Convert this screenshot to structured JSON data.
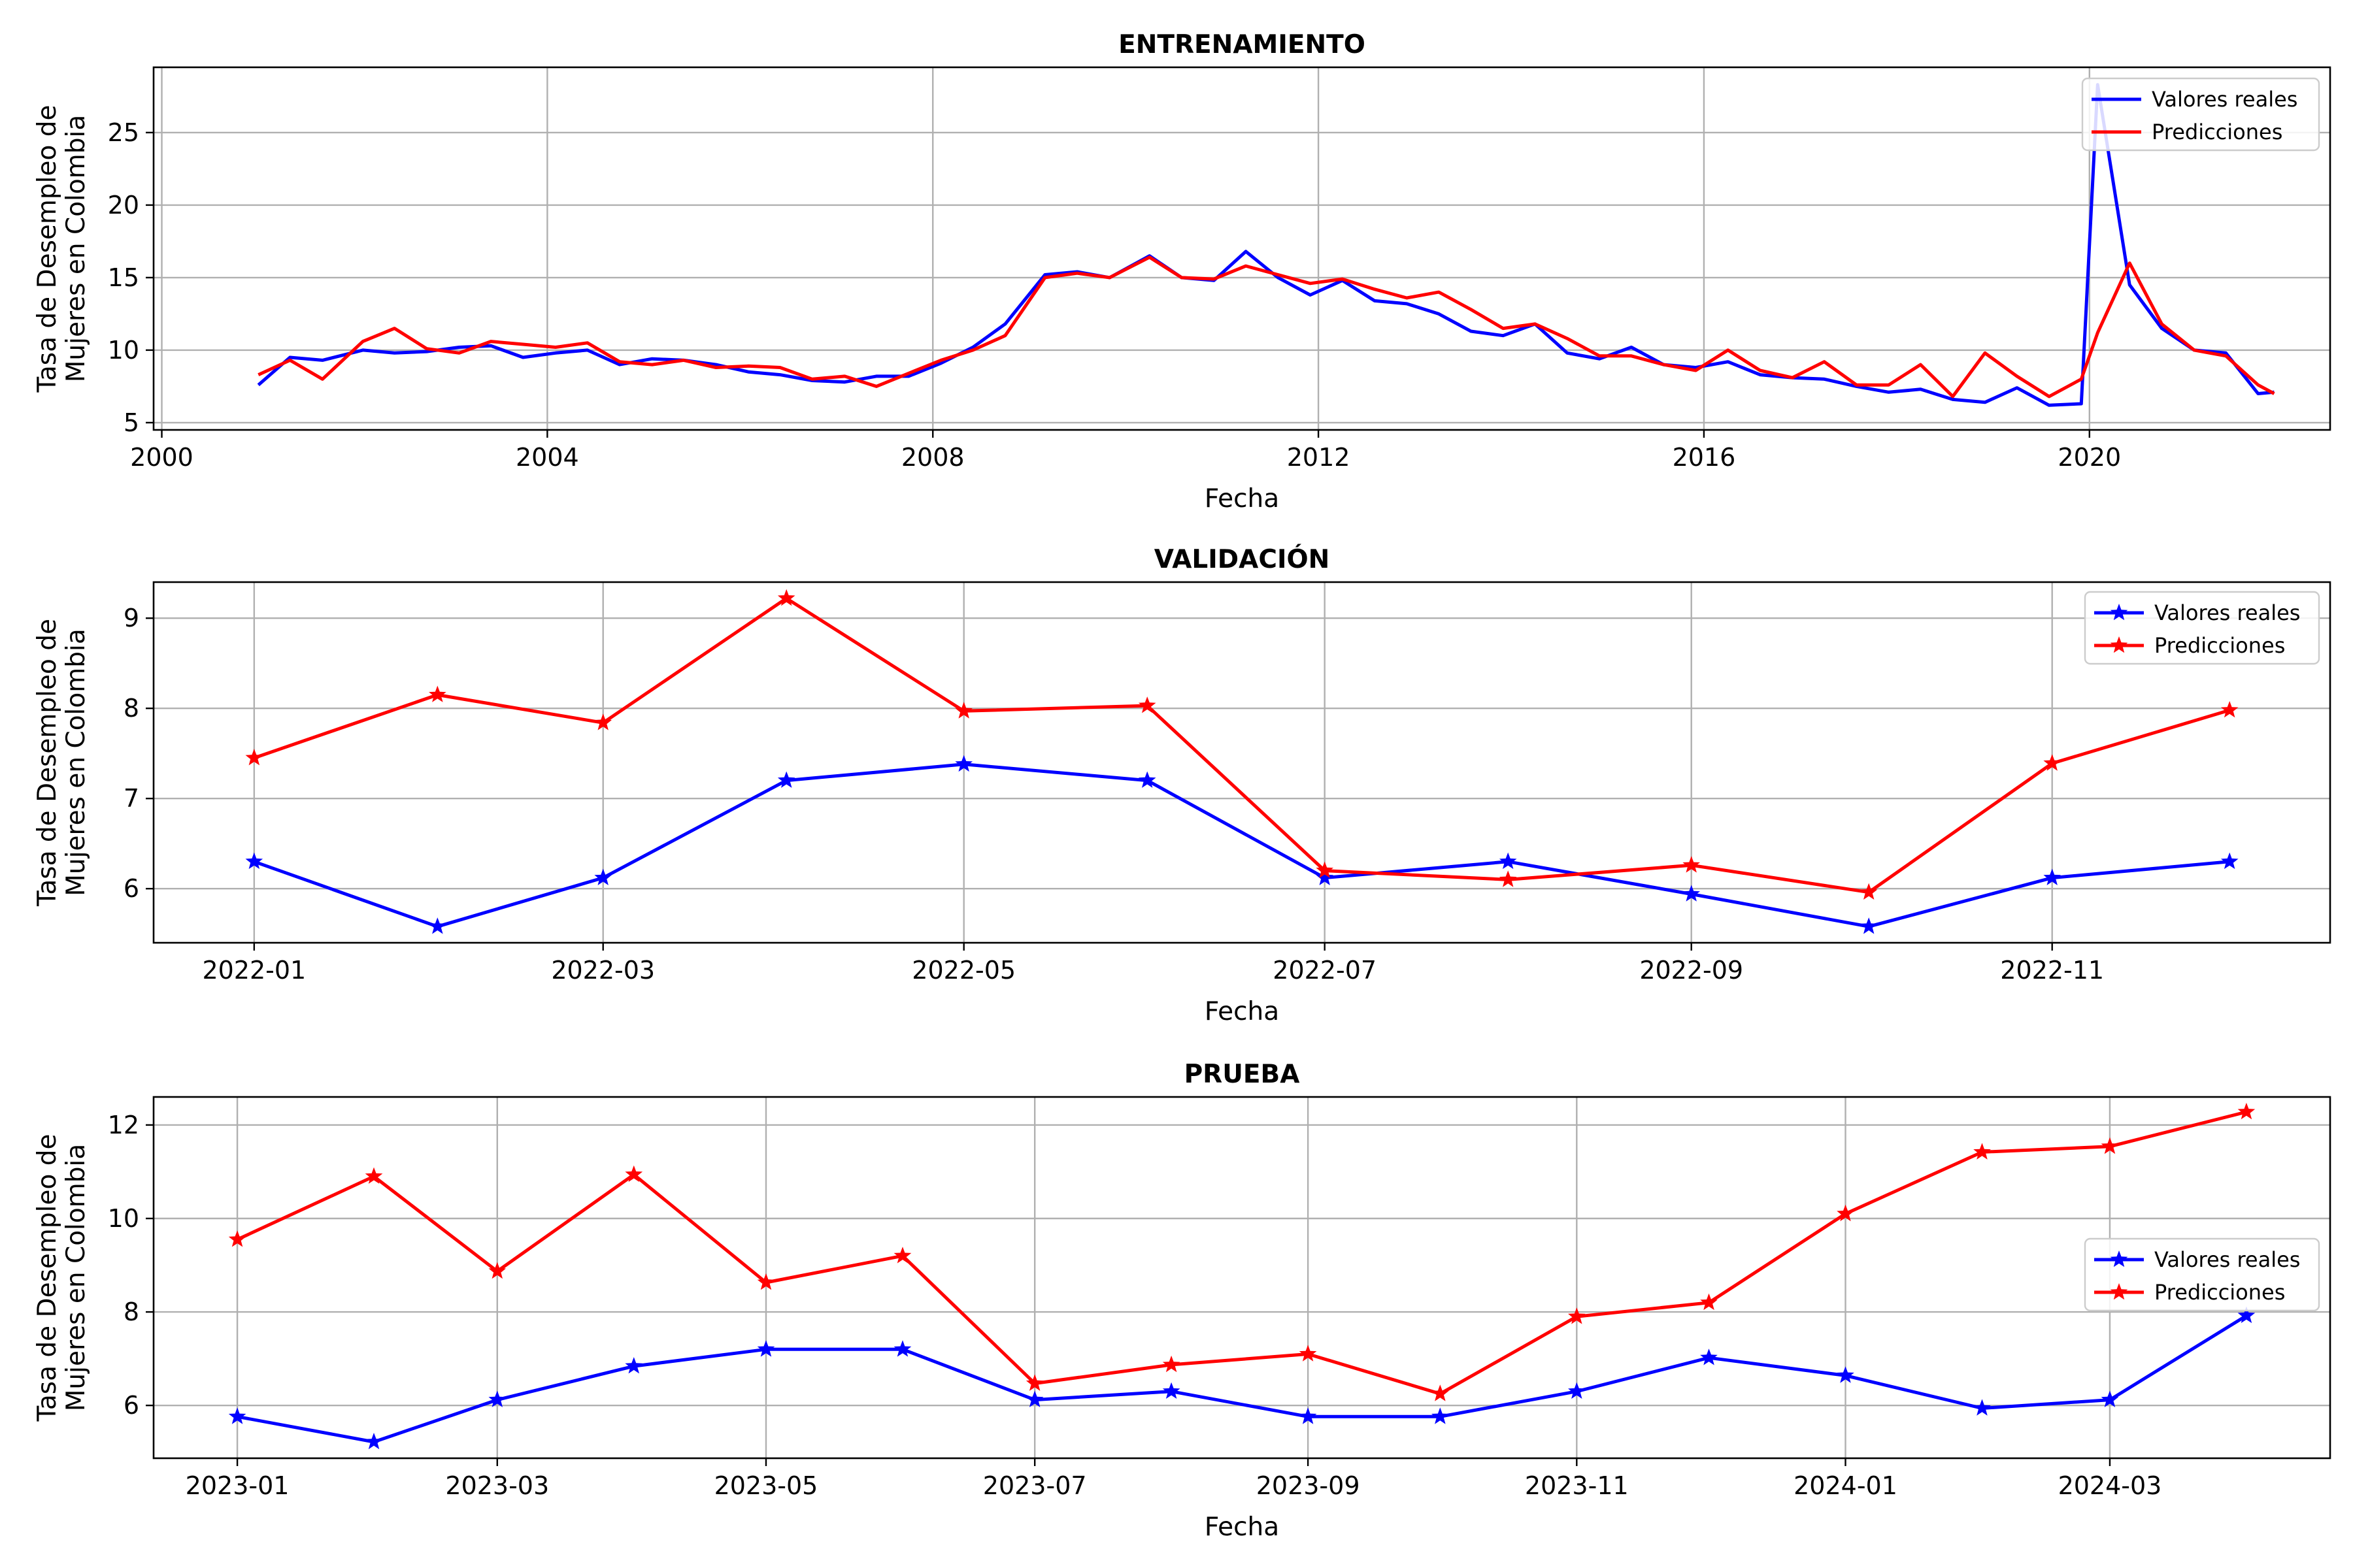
{
  "chart_data": [
    {
      "type": "line",
      "title": "ENTRENAMIENTO",
      "xlabel": "Fecha",
      "ylabel": [
        "Tasa de Desempleo de",
        "Mujeres en Colombia"
      ],
      "x_type": "date",
      "xlim": [
        "1999-12-01",
        "2022-07-01"
      ],
      "ylim": [
        4.5,
        29.5
      ],
      "x_ticks": [
        {
          "value": "2000-01-01",
          "label": "2000"
        },
        {
          "value": "2004-01-01",
          "label": "2004"
        },
        {
          "value": "2008-01-01",
          "label": "2008"
        },
        {
          "value": "2012-01-01",
          "label": "2012"
        },
        {
          "value": "2016-01-01",
          "label": "2016"
        },
        {
          "value": "2020-01-01",
          "label": "2020"
        }
      ],
      "y_ticks": [
        5,
        10,
        15,
        20,
        25
      ],
      "grid": true,
      "legend": "top-right",
      "series": [
        {
          "name": "Valores reales",
          "color": "#0000ff",
          "marker": "none",
          "points": [
            [
              "2001-01-01",
              7.6
            ],
            [
              "2001-05-01",
              9.5
            ],
            [
              "2001-09-01",
              9.3
            ],
            [
              "2002-02-01",
              10.0
            ],
            [
              "2002-06-01",
              9.8
            ],
            [
              "2002-10-01",
              9.9
            ],
            [
              "2003-02-01",
              10.2
            ],
            [
              "2003-06-01",
              10.3
            ],
            [
              "2003-10-01",
              9.5
            ],
            [
              "2004-02-01",
              9.8
            ],
            [
              "2004-06-01",
              10.0
            ],
            [
              "2004-10-01",
              9.0
            ],
            [
              "2005-02-01",
              9.4
            ],
            [
              "2005-06-01",
              9.3
            ],
            [
              "2005-10-01",
              9.0
            ],
            [
              "2006-02-01",
              8.5
            ],
            [
              "2006-06-01",
              8.3
            ],
            [
              "2006-10-01",
              7.9
            ],
            [
              "2007-02-01",
              7.8
            ],
            [
              "2007-06-01",
              8.2
            ],
            [
              "2007-10-01",
              8.2
            ],
            [
              "2008-02-01",
              9.1
            ],
            [
              "2008-06-01",
              10.2
            ],
            [
              "2008-10-01",
              11.8
            ],
            [
              "2009-03-01",
              15.2
            ],
            [
              "2009-07-01",
              15.4
            ],
            [
              "2009-11-01",
              15.0
            ],
            [
              "2010-04-01",
              16.5
            ],
            [
              "2010-08-01",
              15.0
            ],
            [
              "2010-12-01",
              14.8
            ],
            [
              "2011-04-01",
              16.8
            ],
            [
              "2011-08-01",
              15.0
            ],
            [
              "2011-12-01",
              13.8
            ],
            [
              "2012-04-01",
              14.8
            ],
            [
              "2012-08-01",
              13.4
            ],
            [
              "2012-12-01",
              13.2
            ],
            [
              "2013-04-01",
              12.5
            ],
            [
              "2013-08-01",
              11.3
            ],
            [
              "2013-12-01",
              11.0
            ],
            [
              "2014-04-01",
              11.8
            ],
            [
              "2014-08-01",
              9.8
            ],
            [
              "2014-12-01",
              9.4
            ],
            [
              "2015-04-01",
              10.2
            ],
            [
              "2015-08-01",
              9.0
            ],
            [
              "2015-12-01",
              8.8
            ],
            [
              "2016-04-01",
              9.2
            ],
            [
              "2016-08-01",
              8.3
            ],
            [
              "2016-12-01",
              8.1
            ],
            [
              "2017-04-01",
              8.0
            ],
            [
              "2017-08-01",
              7.5
            ],
            [
              "2017-12-01",
              7.1
            ],
            [
              "2018-04-01",
              7.3
            ],
            [
              "2018-08-01",
              6.6
            ],
            [
              "2018-12-01",
              6.4
            ],
            [
              "2019-04-01",
              7.4
            ],
            [
              "2019-08-01",
              6.2
            ],
            [
              "2019-12-01",
              6.3
            ],
            [
              "2020-02-01",
              28.3
            ],
            [
              "2020-06-01",
              14.5
            ],
            [
              "2020-10-01",
              11.5
            ],
            [
              "2021-02-01",
              10.0
            ],
            [
              "2021-06-01",
              9.8
            ],
            [
              "2021-10-01",
              7.0
            ],
            [
              "2021-12-01",
              7.1
            ]
          ]
        },
        {
          "name": "Predicciones",
          "color": "#ff0000",
          "marker": "none",
          "points": [
            [
              "2001-01-01",
              8.3
            ],
            [
              "2001-05-01",
              9.3
            ],
            [
              "2001-09-01",
              8.0
            ],
            [
              "2002-02-01",
              10.6
            ],
            [
              "2002-06-01",
              11.5
            ],
            [
              "2002-10-01",
              10.1
            ],
            [
              "2003-02-01",
              9.8
            ],
            [
              "2003-06-01",
              10.6
            ],
            [
              "2003-10-01",
              10.4
            ],
            [
              "2004-02-01",
              10.2
            ],
            [
              "2004-06-01",
              10.5
            ],
            [
              "2004-10-01",
              9.2
            ],
            [
              "2005-02-01",
              9.0
            ],
            [
              "2005-06-01",
              9.3
            ],
            [
              "2005-10-01",
              8.8
            ],
            [
              "2006-02-01",
              8.9
            ],
            [
              "2006-06-01",
              8.8
            ],
            [
              "2006-10-01",
              8.0
            ],
            [
              "2007-02-01",
              8.2
            ],
            [
              "2007-06-01",
              7.5
            ],
            [
              "2007-10-01",
              8.4
            ],
            [
              "2008-02-01",
              9.3
            ],
            [
              "2008-06-01",
              10.0
            ],
            [
              "2008-10-01",
              11.0
            ],
            [
              "2009-03-01",
              15.0
            ],
            [
              "2009-07-01",
              15.3
            ],
            [
              "2009-11-01",
              15.0
            ],
            [
              "2010-04-01",
              16.4
            ],
            [
              "2010-08-01",
              15.0
            ],
            [
              "2010-12-01",
              14.9
            ],
            [
              "2011-04-01",
              15.8
            ],
            [
              "2011-08-01",
              15.2
            ],
            [
              "2011-12-01",
              14.6
            ],
            [
              "2012-04-01",
              14.9
            ],
            [
              "2012-08-01",
              14.2
            ],
            [
              "2012-12-01",
              13.6
            ],
            [
              "2013-04-01",
              14.0
            ],
            [
              "2013-08-01",
              12.8
            ],
            [
              "2013-12-01",
              11.5
            ],
            [
              "2014-04-01",
              11.8
            ],
            [
              "2014-08-01",
              10.8
            ],
            [
              "2014-12-01",
              9.6
            ],
            [
              "2015-04-01",
              9.6
            ],
            [
              "2015-08-01",
              9.0
            ],
            [
              "2015-12-01",
              8.6
            ],
            [
              "2016-04-01",
              10.0
            ],
            [
              "2016-08-01",
              8.6
            ],
            [
              "2016-12-01",
              8.1
            ],
            [
              "2017-04-01",
              9.2
            ],
            [
              "2017-08-01",
              7.6
            ],
            [
              "2017-12-01",
              7.6
            ],
            [
              "2018-04-01",
              9.0
            ],
            [
              "2018-08-01",
              6.8
            ],
            [
              "2018-12-01",
              9.8
            ],
            [
              "2019-04-01",
              8.2
            ],
            [
              "2019-08-01",
              6.8
            ],
            [
              "2019-12-01",
              8.0
            ],
            [
              "2020-02-01",
              11.2
            ],
            [
              "2020-06-01",
              16.0
            ],
            [
              "2020-10-01",
              11.8
            ],
            [
              "2021-02-01",
              10.0
            ],
            [
              "2021-06-01",
              9.6
            ],
            [
              "2021-10-01",
              7.6
            ],
            [
              "2021-12-01",
              7.0
            ]
          ]
        }
      ]
    },
    {
      "type": "line",
      "title": "VALIDACIÓN",
      "xlabel": "Fecha",
      "ylabel": [
        "Tasa de Desempleo de",
        "Mujeres en Colombia"
      ],
      "x_type": "date",
      "xlim": [
        "2021-12-15",
        "2022-12-18"
      ],
      "ylim": [
        5.4,
        9.4
      ],
      "x_ticks": [
        {
          "value": "2022-01-01",
          "label": "2022-01"
        },
        {
          "value": "2022-03-01",
          "label": "2022-03"
        },
        {
          "value": "2022-05-01",
          "label": "2022-05"
        },
        {
          "value": "2022-07-01",
          "label": "2022-07"
        },
        {
          "value": "2022-09-01",
          "label": "2022-09"
        },
        {
          "value": "2022-11-01",
          "label": "2022-11"
        }
      ],
      "y_ticks": [
        6,
        7,
        8,
        9
      ],
      "grid": true,
      "legend": "top-right",
      "series": [
        {
          "name": "Valores reales",
          "color": "#0000ff",
          "marker": "star",
          "points": [
            [
              "2022-01-01",
              6.3
            ],
            [
              "2022-02-01",
              5.58
            ],
            [
              "2022-03-01",
              6.12
            ],
            [
              "2022-04-01",
              7.2
            ],
            [
              "2022-05-01",
              7.38
            ],
            [
              "2022-06-01",
              7.2
            ],
            [
              "2022-07-01",
              6.12
            ],
            [
              "2022-08-01",
              6.3
            ],
            [
              "2022-09-01",
              5.94
            ],
            [
              "2022-10-01",
              5.58
            ],
            [
              "2022-11-01",
              6.12
            ],
            [
              "2022-12-01",
              6.3
            ]
          ]
        },
        {
          "name": "Predicciones",
          "color": "#ff0000",
          "marker": "star",
          "points": [
            [
              "2022-01-01",
              7.45
            ],
            [
              "2022-02-01",
              8.15
            ],
            [
              "2022-03-01",
              7.84
            ],
            [
              "2022-04-01",
              9.22
            ],
            [
              "2022-05-01",
              7.97
            ],
            [
              "2022-06-01",
              8.03
            ],
            [
              "2022-07-01",
              6.2
            ],
            [
              "2022-08-01",
              6.1
            ],
            [
              "2022-09-01",
              6.26
            ],
            [
              "2022-10-01",
              5.96
            ],
            [
              "2022-11-01",
              7.39
            ],
            [
              "2022-12-01",
              7.98
            ]
          ]
        }
      ]
    },
    {
      "type": "line",
      "title": "PRUEBA",
      "xlabel": "Fecha",
      "ylabel": [
        "Tasa de Desempleo de",
        "Mujeres en Colombia"
      ],
      "x_type": "date",
      "xlim": [
        "2022-12-13",
        "2024-04-20"
      ],
      "ylim": [
        4.87,
        12.6
      ],
      "x_ticks": [
        {
          "value": "2023-01-01",
          "label": "2023-01"
        },
        {
          "value": "2023-03-01",
          "label": "2023-03"
        },
        {
          "value": "2023-05-01",
          "label": "2023-05"
        },
        {
          "value": "2023-07-01",
          "label": "2023-07"
        },
        {
          "value": "2023-09-01",
          "label": "2023-09"
        },
        {
          "value": "2023-11-01",
          "label": "2023-11"
        },
        {
          "value": "2024-01-01",
          "label": "2024-01"
        },
        {
          "value": "2024-03-01",
          "label": "2024-03"
        }
      ],
      "y_ticks": [
        6,
        8,
        10,
        12
      ],
      "grid": true,
      "legend": "center-right",
      "series": [
        {
          "name": "Valores reales",
          "color": "#0000ff",
          "marker": "star",
          "points": [
            [
              "2023-01-01",
              5.76
            ],
            [
              "2023-02-01",
              5.22
            ],
            [
              "2023-03-01",
              6.12
            ],
            [
              "2023-04-01",
              6.84
            ],
            [
              "2023-05-01",
              7.2
            ],
            [
              "2023-06-01",
              7.2
            ],
            [
              "2023-07-01",
              6.12
            ],
            [
              "2023-08-01",
              6.3
            ],
            [
              "2023-09-01",
              5.76
            ],
            [
              "2023-10-01",
              5.76
            ],
            [
              "2023-11-01",
              6.3
            ],
            [
              "2023-12-01",
              7.02
            ],
            [
              "2024-01-01",
              6.64
            ],
            [
              "2024-02-01",
              5.94
            ],
            [
              "2024-03-01",
              6.12
            ],
            [
              "2024-04-01",
              7.92
            ]
          ]
        },
        {
          "name": "Predicciones",
          "color": "#ff0000",
          "marker": "star",
          "points": [
            [
              "2023-01-01",
              9.55
            ],
            [
              "2023-02-01",
              10.9
            ],
            [
              "2023-03-01",
              8.87
            ],
            [
              "2023-04-01",
              10.94
            ],
            [
              "2023-05-01",
              8.63
            ],
            [
              "2023-06-01",
              9.2
            ],
            [
              "2023-07-01",
              6.47
            ],
            [
              "2023-08-01",
              6.87
            ],
            [
              "2023-09-01",
              7.1
            ],
            [
              "2023-10-01",
              6.25
            ],
            [
              "2023-11-01",
              7.9
            ],
            [
              "2023-12-01",
              8.2
            ],
            [
              "2024-01-01",
              10.1
            ],
            [
              "2024-02-01",
              11.42
            ],
            [
              "2024-03-01",
              11.54
            ],
            [
              "2024-04-01",
              12.28
            ]
          ]
        }
      ]
    }
  ]
}
